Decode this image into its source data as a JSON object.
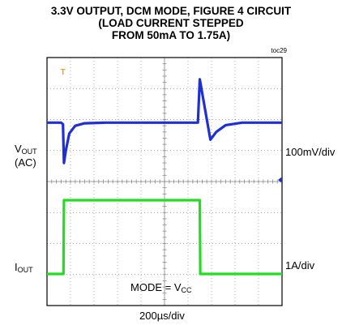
{
  "title_lines": [
    "3.3V OUTPUT, DCM MODE, FIGURE 4 CIRCUIT",
    "(LOAD CURRENT STEPPED",
    "FROM 50mA TO 1.75A)"
  ],
  "figure_code": "toc29",
  "vout_label": {
    "main": "V",
    "sub": "OUT",
    "suffix": "(AC)"
  },
  "iout_label": {
    "main": "I",
    "sub": "OUT"
  },
  "vout_scale": "100mV/div",
  "iout_scale": "1A/div",
  "mode_label": {
    "main": "MODE = V",
    "sub": "CC"
  },
  "time_scale": "200µs/div",
  "trigger_marker": "T",
  "colors": {
    "vout": "#1f2fd6",
    "iout": "#22dd22",
    "grid": "#8a8a8a",
    "frame": "#000000",
    "trigger": "#f0a020",
    "marker": "#1f2fd6"
  },
  "chart_data": {
    "type": "line",
    "x_unit": "µs",
    "x_per_div": 200,
    "divisions_x": 10,
    "divisions_y": 8,
    "series": [
      {
        "name": "VOUT (AC)",
        "scale": "100mV/div",
        "baseline_div": 5.9,
        "points": [
          [
            0,
            5.9
          ],
          [
            0.6,
            5.9
          ],
          [
            0.68,
            5.85
          ],
          [
            0.72,
            4.6
          ],
          [
            0.8,
            5.0
          ],
          [
            0.95,
            5.55
          ],
          [
            1.2,
            5.8
          ],
          [
            1.6,
            5.88
          ],
          [
            2.5,
            5.9
          ],
          [
            6.0,
            5.9
          ],
          [
            6.42,
            5.9
          ],
          [
            6.5,
            7.3
          ],
          [
            6.95,
            5.35
          ],
          [
            7.2,
            5.6
          ],
          [
            7.6,
            5.82
          ],
          [
            8.3,
            5.9
          ],
          [
            10,
            5.9
          ]
        ]
      },
      {
        "name": "IOUT",
        "scale": "1A/div",
        "low_div": 1.02,
        "high_div": 3.4,
        "points": [
          [
            0,
            1.02
          ],
          [
            0.7,
            1.02
          ],
          [
            0.72,
            3.4
          ],
          [
            6.5,
            3.4
          ],
          [
            6.52,
            1.02
          ],
          [
            10,
            1.02
          ]
        ]
      }
    ]
  }
}
